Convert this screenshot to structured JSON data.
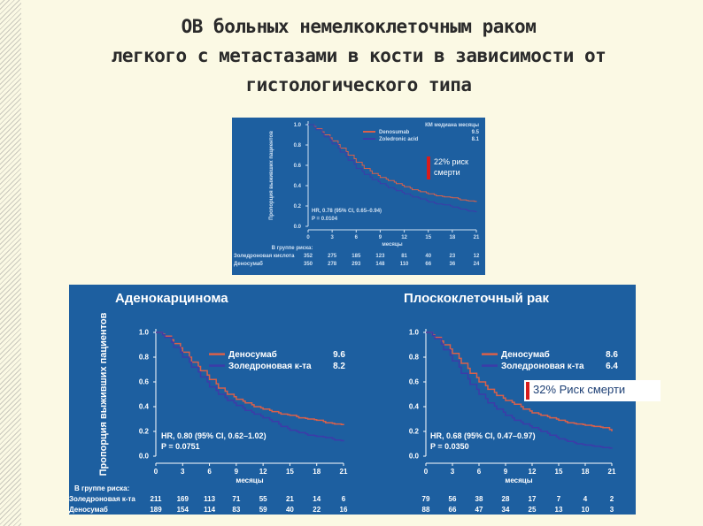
{
  "title": {
    "line1": "ОВ больных немелкоклеточным раком",
    "line2": "легкого с метастазами в кости в зависимости от",
    "line3": "гистологического типа"
  },
  "colors": {
    "panel_bg": "#1d5fa0",
    "denosumab": "#d9604a",
    "zoledronic": "#3c3ca8",
    "callout_mark": "#d81c1c"
  },
  "chart_data": [
    {
      "type": "line",
      "title": "",
      "ylabel": "Пропорция выживших пациентов",
      "xlabel": "месяцы",
      "ylim": [
        0,
        1.0
      ],
      "y_ticks": [
        "0.0",
        "0.2",
        "0.4",
        "0.6",
        "0.8",
        "1.0"
      ],
      "xlim": [
        0,
        21
      ],
      "x_ticks": [
        "0",
        "3",
        "6",
        "9",
        "12",
        "15",
        "18",
        "21"
      ],
      "legend_header": "КМ медиана месяцы",
      "series": [
        {
          "name": "Denosumab",
          "median": "9.5",
          "x": [
            0,
            1,
            2,
            3,
            4,
            5,
            6,
            7,
            8,
            9,
            10,
            11,
            12,
            13,
            14,
            15,
            16,
            17,
            18,
            19,
            20,
            21
          ],
          "values": [
            1.0,
            0.96,
            0.9,
            0.84,
            0.77,
            0.7,
            0.63,
            0.57,
            0.52,
            0.48,
            0.45,
            0.42,
            0.39,
            0.36,
            0.34,
            0.32,
            0.3,
            0.29,
            0.28,
            0.26,
            0.25,
            0.24
          ]
        },
        {
          "name": "Zoledronic acid",
          "median": "8.1",
          "x": [
            0,
            1,
            2,
            3,
            4,
            5,
            6,
            7,
            8,
            9,
            10,
            11,
            12,
            13,
            14,
            15,
            16,
            17,
            18,
            19,
            20,
            21
          ],
          "values": [
            1.0,
            0.95,
            0.88,
            0.81,
            0.73,
            0.65,
            0.57,
            0.51,
            0.46,
            0.42,
            0.38,
            0.35,
            0.32,
            0.29,
            0.27,
            0.24,
            0.22,
            0.21,
            0.19,
            0.17,
            0.15,
            0.14
          ]
        }
      ],
      "callout": "22% риск смерти",
      "annotation": [
        "HR, 0.78 (95% CI, 0.65–0.94)",
        "P = 0.0104"
      ],
      "at_risk": {
        "header": "В группе риска:",
        "rows": [
          {
            "label": "Золедроновая кислота",
            "values": [
              "352",
              "275",
              "185",
              "123",
              "81",
              "40",
              "23",
              "12"
            ]
          },
          {
            "label": "Деносумаб",
            "values": [
              "350",
              "278",
              "293",
              "148",
              "110",
              "66",
              "36",
              "24"
            ]
          }
        ]
      }
    },
    {
      "type": "line",
      "title": "Аденокарцинома",
      "ylabel": "Пропорция выживших пациентов",
      "xlabel": "месяцы",
      "ylim": [
        0,
        1.0
      ],
      "y_ticks": [
        "0.0",
        "0.2",
        "0.4",
        "0.6",
        "0.8",
        "1.0"
      ],
      "xlim": [
        0,
        21
      ],
      "x_ticks": [
        "0",
        "3",
        "6",
        "9",
        "12",
        "15",
        "18",
        "21"
      ],
      "series": [
        {
          "name": "Деносумаб",
          "median": "9.6",
          "x": [
            0,
            1,
            2,
            3,
            4,
            5,
            6,
            7,
            8,
            9,
            10,
            11,
            12,
            13,
            14,
            15,
            16,
            17,
            18,
            19,
            20,
            21
          ],
          "values": [
            1.0,
            0.97,
            0.91,
            0.84,
            0.76,
            0.69,
            0.62,
            0.55,
            0.5,
            0.46,
            0.43,
            0.4,
            0.38,
            0.36,
            0.34,
            0.33,
            0.31,
            0.3,
            0.29,
            0.27,
            0.26,
            0.25
          ]
        },
        {
          "name": "Золедроновая к-та",
          "median": "8.2",
          "x": [
            0,
            1,
            2,
            3,
            4,
            5,
            6,
            7,
            8,
            9,
            10,
            11,
            12,
            13,
            14,
            15,
            16,
            17,
            18,
            19,
            20,
            21
          ],
          "values": [
            1.0,
            0.96,
            0.88,
            0.8,
            0.72,
            0.64,
            0.56,
            0.5,
            0.45,
            0.41,
            0.37,
            0.34,
            0.31,
            0.28,
            0.24,
            0.21,
            0.19,
            0.17,
            0.16,
            0.15,
            0.13,
            0.12
          ]
        }
      ],
      "annotation": [
        "HR, 0.80 (95% CI, 0.62–1.02)",
        "P = 0.0751"
      ],
      "at_risk": {
        "header": "В группе риска:",
        "rows": [
          {
            "label": "Золедроновая к-та",
            "values": [
              "211",
              "169",
              "113",
              "71",
              "55",
              "21",
              "14",
              "6"
            ]
          },
          {
            "label": "Деносумаб",
            "values": [
              "189",
              "154",
              "114",
              "83",
              "59",
              "40",
              "22",
              "16"
            ]
          }
        ]
      }
    },
    {
      "type": "line",
      "title": "Плоскоклеточный рак",
      "ylabel": "",
      "xlabel": "месяцы",
      "ylim": [
        0,
        1.0
      ],
      "y_ticks": [
        "0.0",
        "0.2",
        "0.4",
        "0.6",
        "0.8",
        "1.0"
      ],
      "xlim": [
        0,
        21
      ],
      "x_ticks": [
        "0",
        "3",
        "6",
        "9",
        "12",
        "15",
        "18",
        "21"
      ],
      "series": [
        {
          "name": "Деносумаб",
          "median": "8.6",
          "x": [
            0,
            1,
            2,
            3,
            4,
            5,
            6,
            7,
            8,
            9,
            10,
            11,
            12,
            13,
            14,
            15,
            16,
            17,
            18,
            19,
            20,
            21
          ],
          "values": [
            1.0,
            0.96,
            0.9,
            0.83,
            0.75,
            0.67,
            0.6,
            0.54,
            0.49,
            0.45,
            0.42,
            0.38,
            0.35,
            0.33,
            0.31,
            0.29,
            0.27,
            0.26,
            0.25,
            0.24,
            0.23,
            0.2
          ]
        },
        {
          "name": "Золедроновая к-та",
          "median": "6.4",
          "x": [
            0,
            1,
            2,
            3,
            4,
            5,
            6,
            7,
            8,
            9,
            10,
            11,
            12,
            13,
            14,
            15,
            16,
            17,
            18,
            19,
            20,
            21
          ],
          "values": [
            1.0,
            0.95,
            0.86,
            0.77,
            0.67,
            0.58,
            0.5,
            0.43,
            0.38,
            0.33,
            0.29,
            0.26,
            0.23,
            0.2,
            0.17,
            0.14,
            0.12,
            0.1,
            0.09,
            0.08,
            0.07,
            0.06
          ]
        }
      ],
      "callout": "32%  Риск смерти",
      "annotation": [
        "HR, 0.68 (95% CI, 0.47–0.97)",
        "P = 0.0350"
      ],
      "at_risk": {
        "header": "",
        "rows": [
          {
            "label": "",
            "values": [
              "79",
              "56",
              "38",
              "28",
              "17",
              "7",
              "4",
              "2"
            ]
          },
          {
            "label": "",
            "values": [
              "88",
              "66",
              "47",
              "34",
              "25",
              "13",
              "10",
              "3"
            ]
          }
        ]
      }
    }
  ]
}
